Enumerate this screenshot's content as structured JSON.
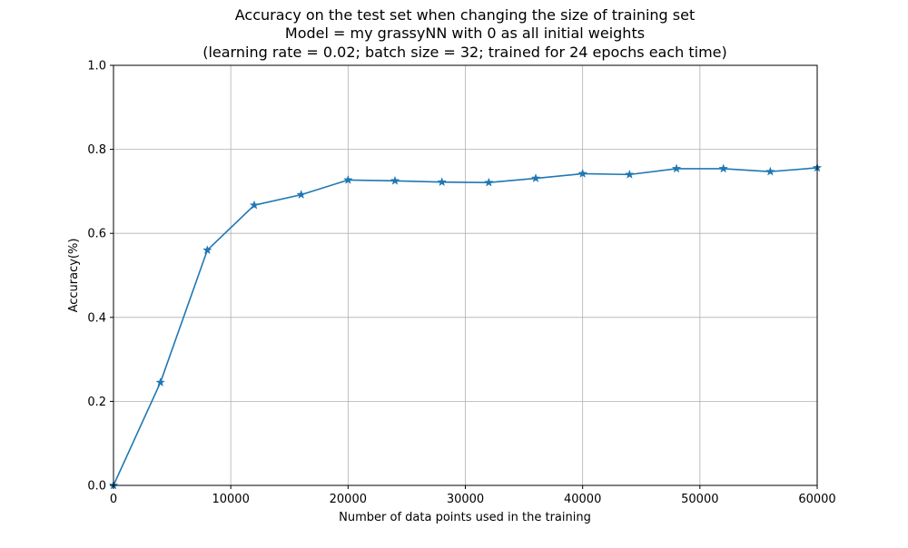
{
  "chart_data": {
    "type": "line",
    "title_lines": [
      "Accuracy on the test set when changing the size of training set",
      "Model = my grassyNN with 0 as all initial weights",
      "(learning rate = 0.02; batch size = 32; trained for 24 epochs each time)"
    ],
    "xlabel": "Number of data points used in the training",
    "ylabel": "Accuracy(%)",
    "xlim": [
      0,
      60000
    ],
    "ylim": [
      0.0,
      1.0
    ],
    "x_ticks": [
      0,
      10000,
      20000,
      30000,
      40000,
      50000,
      60000
    ],
    "x_tick_labels": [
      "0",
      "10000",
      "20000",
      "30000",
      "40000",
      "50000",
      "60000"
    ],
    "y_ticks": [
      0.0,
      0.2,
      0.4,
      0.6,
      0.8,
      1.0
    ],
    "y_tick_labels": [
      "0.0",
      "0.2",
      "0.4",
      "0.6",
      "0.8",
      "1.0"
    ],
    "grid": true,
    "marker": "star",
    "series_color": "#1f77b4",
    "series": [
      {
        "x": [
          0,
          4000,
          8000,
          12000,
          16000,
          20000,
          24000,
          28000,
          32000,
          36000,
          40000,
          44000,
          48000,
          52000,
          56000,
          60000
        ],
        "values": [
          0.0,
          0.245,
          0.56,
          0.667,
          0.692,
          0.727,
          0.725,
          0.722,
          0.721,
          0.731,
          0.742,
          0.74,
          0.754,
          0.754,
          0.747,
          0.756
        ]
      }
    ]
  }
}
